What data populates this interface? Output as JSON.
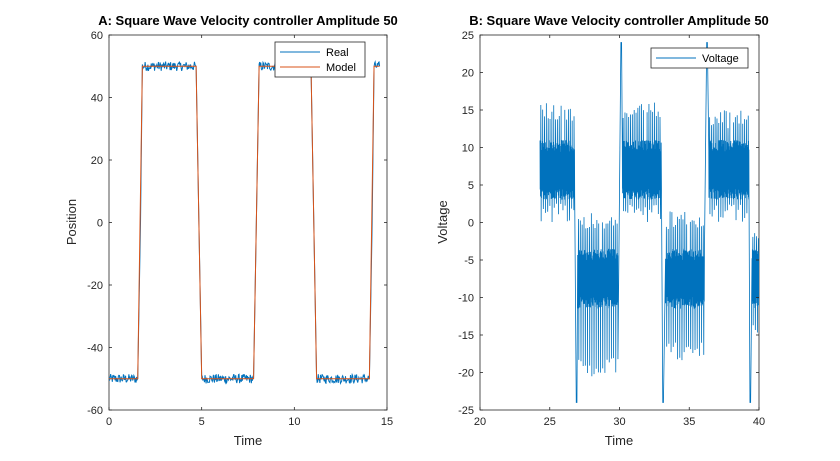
{
  "chart_data": [
    {
      "type": "line",
      "title": "A: Square Wave Velocity controller Amplitude 50",
      "xlabel": "Time",
      "ylabel": "Position",
      "xlim": [
        0,
        15
      ],
      "ylim": [
        -60,
        60
      ],
      "xticks": [
        "0",
        "5",
        "10",
        "15"
      ],
      "yticks": [
        "-60",
        "-40",
        "-20",
        "0",
        "20",
        "40",
        "60"
      ],
      "legend_position": "top-right",
      "series": [
        {
          "name": "Real",
          "color": "#0072BD",
          "x": [
            0.0,
            1.55,
            1.7,
            1.8,
            4.7,
            4.85,
            5.0,
            7.8,
            7.95,
            8.1,
            10.9,
            11.05,
            11.2,
            14.05,
            14.2,
            14.3,
            14.6
          ],
          "y": [
            -50,
            -50,
            0,
            50,
            50,
            0,
            -50,
            -50,
            0,
            50,
            50,
            0,
            -50,
            -50,
            0,
            50,
            50
          ],
          "noise_amplitude": 1.5
        },
        {
          "name": "Model",
          "color": "#D95319",
          "x": [
            0.0,
            1.55,
            1.8,
            4.7,
            5.0,
            7.8,
            8.1,
            10.9,
            11.2,
            14.05,
            14.3,
            14.6
          ],
          "y": [
            -50,
            -50,
            50,
            50,
            -50,
            -50,
            50,
            50,
            -50,
            -50,
            50,
            50
          ]
        }
      ]
    },
    {
      "type": "line",
      "title": "B: Square Wave Velocity controller Amplitude 50",
      "xlabel": "Time",
      "ylabel": "Voltage",
      "xlim": [
        20,
        40
      ],
      "ylim": [
        -25,
        25
      ],
      "xticks": [
        "20",
        "25",
        "30",
        "35",
        "40"
      ],
      "yticks": [
        "-25",
        "-20",
        "-15",
        "-10",
        "-5",
        "0",
        "5",
        "10",
        "15",
        "20",
        "25"
      ],
      "legend_position": "top-right",
      "series": [
        {
          "name": "Voltage",
          "color": "#0072BD",
          "segments": [
            {
              "x_start": 24.3,
              "x_end": 26.8,
              "center": 7,
              "band": 4,
              "spike_max": 16,
              "spike_min": 0
            },
            {
              "x_start": 27.0,
              "x_end": 29.9,
              "center": -7.5,
              "band": 4,
              "spike_max": 1.5,
              "spike_min": -20.5
            },
            {
              "x_start": 30.2,
              "x_end": 33.0,
              "center": 7,
              "band": 4,
              "spike_max": 16,
              "spike_min": 0
            },
            {
              "x_start": 33.3,
              "x_end": 36.1,
              "center": -7.5,
              "band": 4,
              "spike_max": 1.5,
              "spike_min": -18.5
            },
            {
              "x_start": 36.4,
              "x_end": 39.3,
              "center": 7,
              "band": 4,
              "spike_max": 15,
              "spike_min": 0
            },
            {
              "x_start": 39.5,
              "x_end": 40.0,
              "center": -7.5,
              "band": 4,
              "spike_max": 0,
              "spike_min": -16
            }
          ],
          "transitions": [
            {
              "x": 26.9,
              "from": 7,
              "peak": -24
            },
            {
              "x": 30.1,
              "from": -7.5,
              "peak": 24
            },
            {
              "x": 33.1,
              "from": 7,
              "peak": -24
            },
            {
              "x": 36.25,
              "from": -7.5,
              "peak": 24
            },
            {
              "x": 39.35,
              "from": 7,
              "peak": -24
            }
          ]
        }
      ]
    }
  ]
}
